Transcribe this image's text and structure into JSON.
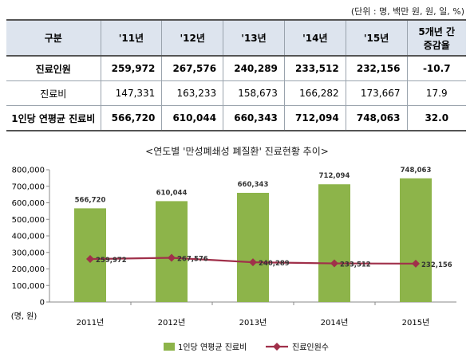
{
  "unit_note": "(단위 : 명, 백만 원, 원, 일, %)",
  "table": {
    "headers": [
      "구분",
      "'11년",
      "'12년",
      "'13년",
      "'14년",
      "'15년",
      "5개년 간",
      "증감율"
    ],
    "rows": [
      {
        "label": "진료인원",
        "values": [
          "259,972",
          "267,576",
          "240,289",
          "233,512",
          "232,156",
          "-10.7"
        ]
      },
      {
        "label": "진료비",
        "values": [
          "147,331",
          "163,233",
          "158,673",
          "166,282",
          "173,667",
          "17.9"
        ]
      },
      {
        "label": "1인당 연평균 진료비",
        "values": [
          "566,720",
          "610,044",
          "660,343",
          "712,094",
          "748,063",
          "32.0"
        ]
      }
    ]
  },
  "chart_title": "<연도별 '만성폐쇄성 폐질환' 진료현황 추이>",
  "chart_data": {
    "type": "bar",
    "categories": [
      "2011년",
      "2012년",
      "2013년",
      "2014년",
      "2015년"
    ],
    "series": [
      {
        "name": "1인당 연평균 진료비",
        "type": "bar",
        "color": "#8db44a",
        "values": [
          566720,
          610044,
          660343,
          712094,
          748063
        ],
        "labels": [
          "566,720",
          "610,044",
          "660,343",
          "712,094",
          "748,063"
        ]
      },
      {
        "name": "진료인원수",
        "type": "line",
        "color": "#a0304a",
        "values": [
          259972,
          267576,
          240289,
          233512,
          232156
        ],
        "labels": [
          "259,972",
          "267,576",
          "240,289",
          "233,512",
          "232,156"
        ]
      }
    ],
    "ylabel": "(명, 원)",
    "ylim": [
      0,
      800000
    ],
    "yticks": [
      "0",
      "100,000",
      "200,000",
      "300,000",
      "400,000",
      "500,000",
      "600,000",
      "700,000",
      "800,000"
    ],
    "legend_position": "bottom"
  }
}
